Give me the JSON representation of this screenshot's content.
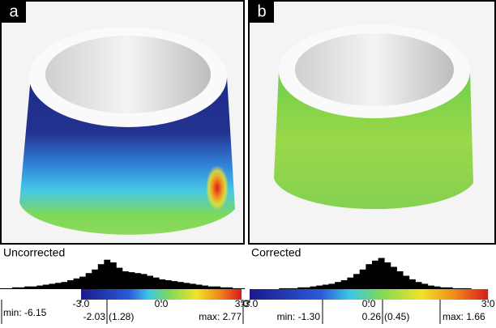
{
  "panels": [
    {
      "label": "a",
      "caption": "Uncorrected",
      "xlim": [
        -6.03,
        3.12
      ],
      "clim": [
        -3,
        3
      ],
      "counts": [
        1,
        1,
        2,
        2,
        3,
        3,
        4,
        5,
        6,
        7,
        8,
        10,
        12,
        14,
        18,
        22,
        28,
        33,
        30,
        24,
        20,
        19,
        18,
        17,
        15,
        13,
        11,
        10,
        9,
        8,
        7,
        6,
        5,
        4,
        3,
        3,
        2,
        2,
        1,
        1
      ],
      "xticks": [
        {
          "value": -3,
          "label": "-3.0"
        },
        {
          "value": 0,
          "label": "0.0"
        },
        {
          "value": 3,
          "label": "3.0"
        }
      ],
      "stats": [
        "min: -6.15",
        "-2.03",
        "(1.28)",
        "max: 2.77"
      ]
    },
    {
      "label": "b",
      "caption": "Corrected",
      "xlim": [
        -3.04,
        3.2
      ],
      "clim": [
        -3,
        3
      ],
      "counts": [
        0,
        0,
        0,
        0,
        0,
        1,
        1,
        1,
        2,
        2,
        3,
        4,
        5,
        6,
        8,
        10,
        13,
        17,
        22,
        28,
        32,
        35,
        30,
        25,
        20,
        15,
        11,
        8,
        6,
        4,
        3,
        2,
        2,
        1,
        1,
        1,
        0,
        0,
        0,
        0
      ],
      "xticks": [
        {
          "value": -3,
          "label": "-3.0"
        },
        {
          "value": 0,
          "label": "0.0"
        },
        {
          "value": 3,
          "label": "3.0"
        }
      ],
      "stats": [
        "min: -1.30",
        "0.26",
        "(0.45)",
        "max: 1.66"
      ]
    }
  ]
}
